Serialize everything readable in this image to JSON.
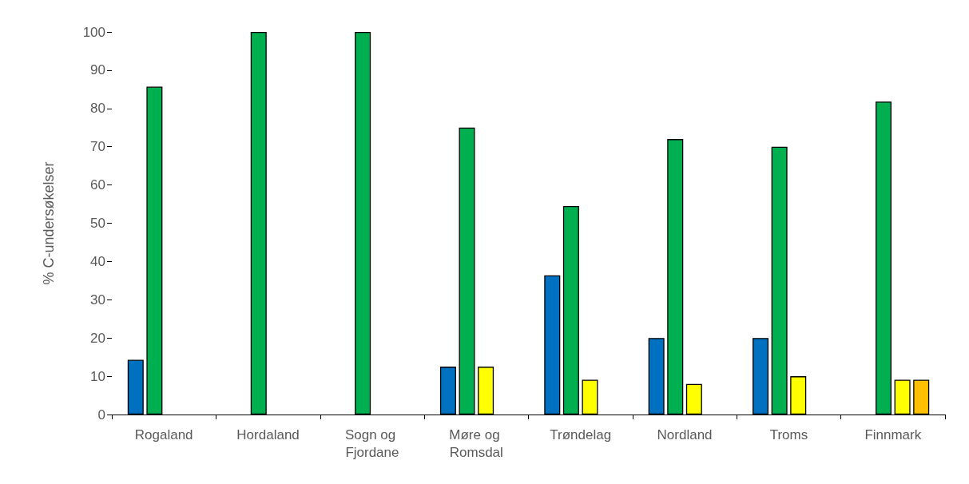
{
  "chart_data": {
    "type": "bar",
    "ylabel": "% C-undersøkelser",
    "categories": [
      "Rogaland",
      "Hordaland",
      "Sogn og Fjordane",
      "Møre og Romsdal",
      "Trøndelag",
      "Nordland",
      "Troms",
      "Finnmark"
    ],
    "series": [
      {
        "color": "#0070c0",
        "values": [
          14.3,
          null,
          null,
          12.5,
          36.4,
          20,
          20,
          null
        ]
      },
      {
        "color": "#00b050",
        "values": [
          85.7,
          100,
          100,
          75,
          54.5,
          72,
          70,
          81.8
        ]
      },
      {
        "color": "#ffff00",
        "values": [
          null,
          null,
          null,
          12.5,
          9.1,
          8,
          10,
          9.1
        ]
      },
      {
        "color": "#ffc000",
        "values": [
          null,
          null,
          null,
          null,
          null,
          null,
          null,
          9.1
        ]
      }
    ],
    "ylim": [
      0,
      100
    ],
    "yticks": [
      0,
      10,
      20,
      30,
      40,
      50,
      60,
      70,
      80,
      90,
      100
    ],
    "grid": false
  }
}
